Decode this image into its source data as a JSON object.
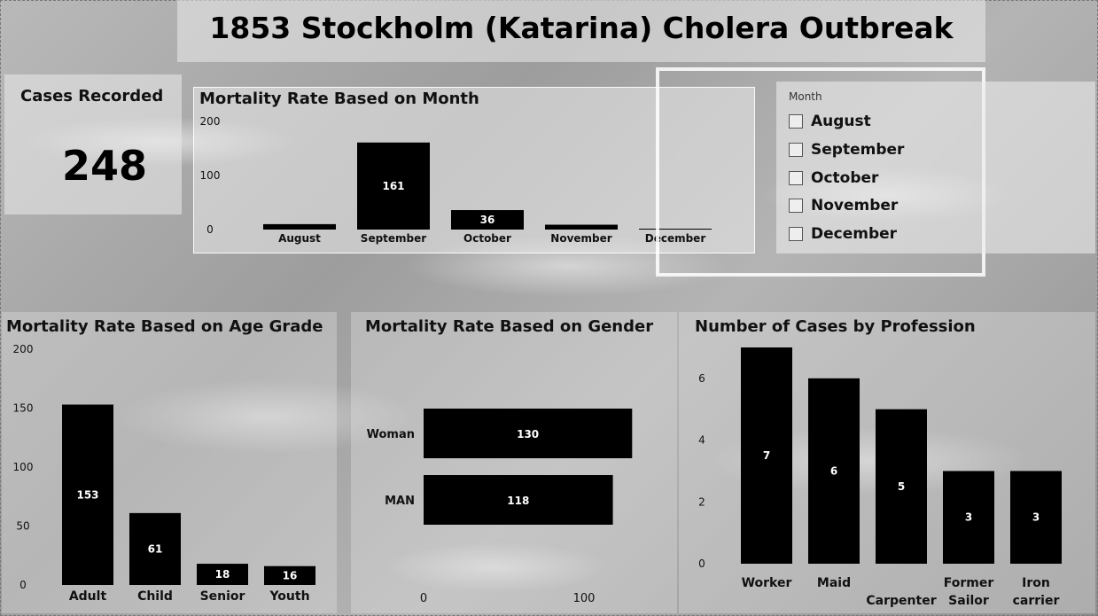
{
  "title": "1853 Stockholm (Katarina) Cholera Outbreak",
  "kpi": {
    "label": "Cases Recorded",
    "value": "248"
  },
  "slicer": {
    "label": "Month",
    "options": [
      "August",
      "September",
      "October",
      "November",
      "December"
    ]
  },
  "chart_data": [
    {
      "id": "month",
      "type": "bar",
      "title": "Mortality Rate Based on Month",
      "categories": [
        "August",
        "September",
        "October",
        "November",
        "December"
      ],
      "values": [
        10,
        161,
        36,
        9,
        1
      ],
      "data_labels": [
        "",
        "161",
        "36",
        "",
        ""
      ],
      "ylim": [
        0,
        200
      ],
      "yticks": [
        0,
        100,
        200
      ],
      "grid": false
    },
    {
      "id": "age",
      "type": "bar",
      "title": "Mortality Rate Based on Age Grade",
      "categories": [
        "Adult",
        "Child",
        "Senior",
        "Youth"
      ],
      "values": [
        153,
        61,
        18,
        16
      ],
      "ylim": [
        0,
        200
      ],
      "yticks": [
        0,
        50,
        100,
        150,
        200
      ],
      "grid": false
    },
    {
      "id": "gender",
      "type": "bar",
      "orientation": "horizontal",
      "title": "Mortality Rate Based on Gender",
      "categories": [
        "Woman",
        "MAN"
      ],
      "values": [
        130,
        118
      ],
      "xticks": [
        0,
        100
      ],
      "grid": false
    },
    {
      "id": "profession",
      "type": "bar",
      "title": "Number of Cases by Profession",
      "categories": [
        "Worker",
        "Maid",
        "Carpenter",
        "Former Sailor",
        "Iron carrier"
      ],
      "values": [
        7,
        6,
        5,
        3,
        3
      ],
      "ylim": [
        0,
        7
      ],
      "yticks": [
        0,
        2,
        4,
        6
      ],
      "grid": false
    }
  ]
}
